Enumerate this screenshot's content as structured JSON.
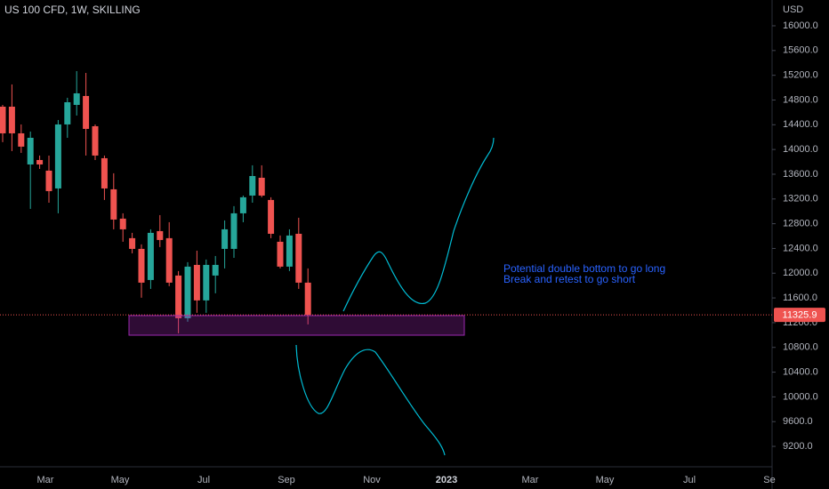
{
  "chart_data": {
    "type": "candlestick",
    "title": "US 100 CFD, 1W, SKILLING",
    "y_axis_label": "USD",
    "up_color": "#26a69a",
    "down_color": "#ef5350",
    "open": [
      14692,
      14692,
      14261,
      13758,
      13830,
      13658,
      13370,
      14405,
      14721,
      14865,
      14376,
      13859,
      13356,
      12882,
      12566,
      12393,
      11890,
      12680,
      12566,
      11962,
      11272,
      12134,
      11560,
      11962,
      12393,
      12393,
      12968,
      13255,
      13543,
      13184,
      12508,
      12106,
      12637,
      11847
    ],
    "high": [
      14721,
      15052,
      14405,
      14290,
      13902,
      13902,
      14477,
      14836,
      15267,
      15238,
      14405,
      13902,
      13615,
      12968,
      12652,
      12465,
      12709,
      12939,
      12824,
      12034,
      12178,
      12364,
      12221,
      12278,
      12853,
      13083,
      13255,
      13744,
      13744,
      13227,
      12609,
      12709,
      12896,
      12077
    ],
    "low": [
      14118,
      13974,
      13945,
      13040,
      13686,
      13140,
      12968,
      14189,
      14549,
      13902,
      13830,
      13184,
      12709,
      12508,
      12321,
      11603,
      11746,
      12422,
      11790,
      11028,
      11215,
      11359,
      11359,
      11675,
      12077,
      12249,
      12824,
      13140,
      13227,
      12566,
      12077,
      12034,
      11746,
      11172
    ],
    "close": [
      14261,
      14261,
      14046,
      14189,
      13758,
      13327,
      14405,
      14764,
      14908,
      14333,
      13902,
      13370,
      12867,
      12709,
      12393,
      11847,
      12652,
      12537,
      11847,
      11272,
      12106,
      11560,
      12134,
      12134,
      12709,
      12968,
      13227,
      13571,
      13255,
      12637,
      12106,
      12609,
      11847,
      11325.9
    ],
    "ylim": [
      8870,
      16417
    ],
    "yticks": [
      {
        "value": 16000,
        "label": "16000.0"
      },
      {
        "value": 15600,
        "label": "15600.0"
      },
      {
        "value": 15200,
        "label": "15200.0"
      },
      {
        "value": 14800,
        "label": "14800.0"
      },
      {
        "value": 14400,
        "label": "14400.0"
      },
      {
        "value": 14000,
        "label": "14000.0"
      },
      {
        "value": 13600,
        "label": "13600.0"
      },
      {
        "value": 13200,
        "label": "13200.0"
      },
      {
        "value": 12800,
        "label": "12800.0"
      },
      {
        "value": 12400,
        "label": "12400.0"
      },
      {
        "value": 12000,
        "label": "12000.0"
      },
      {
        "value": 11600,
        "label": "11600.0"
      },
      {
        "value": 11200,
        "label": "11200.0"
      },
      {
        "value": 10800,
        "label": "10800.0"
      },
      {
        "value": 10400,
        "label": "10400.0"
      },
      {
        "value": 10000,
        "label": "10000.0"
      },
      {
        "value": 9600,
        "label": "9600.0"
      },
      {
        "value": 9200,
        "label": "9200.0"
      }
    ],
    "x_labels": [
      "Mar",
      "May",
      "Jul",
      "Sep",
      "Nov",
      "2023",
      "Mar",
      "May",
      "Jul",
      "Se"
    ],
    "last_price": {
      "value": 11325.9,
      "label": "11325.9"
    },
    "annotations": [
      "Potential double bottom to go long",
      "Break and retest to go short"
    ]
  }
}
